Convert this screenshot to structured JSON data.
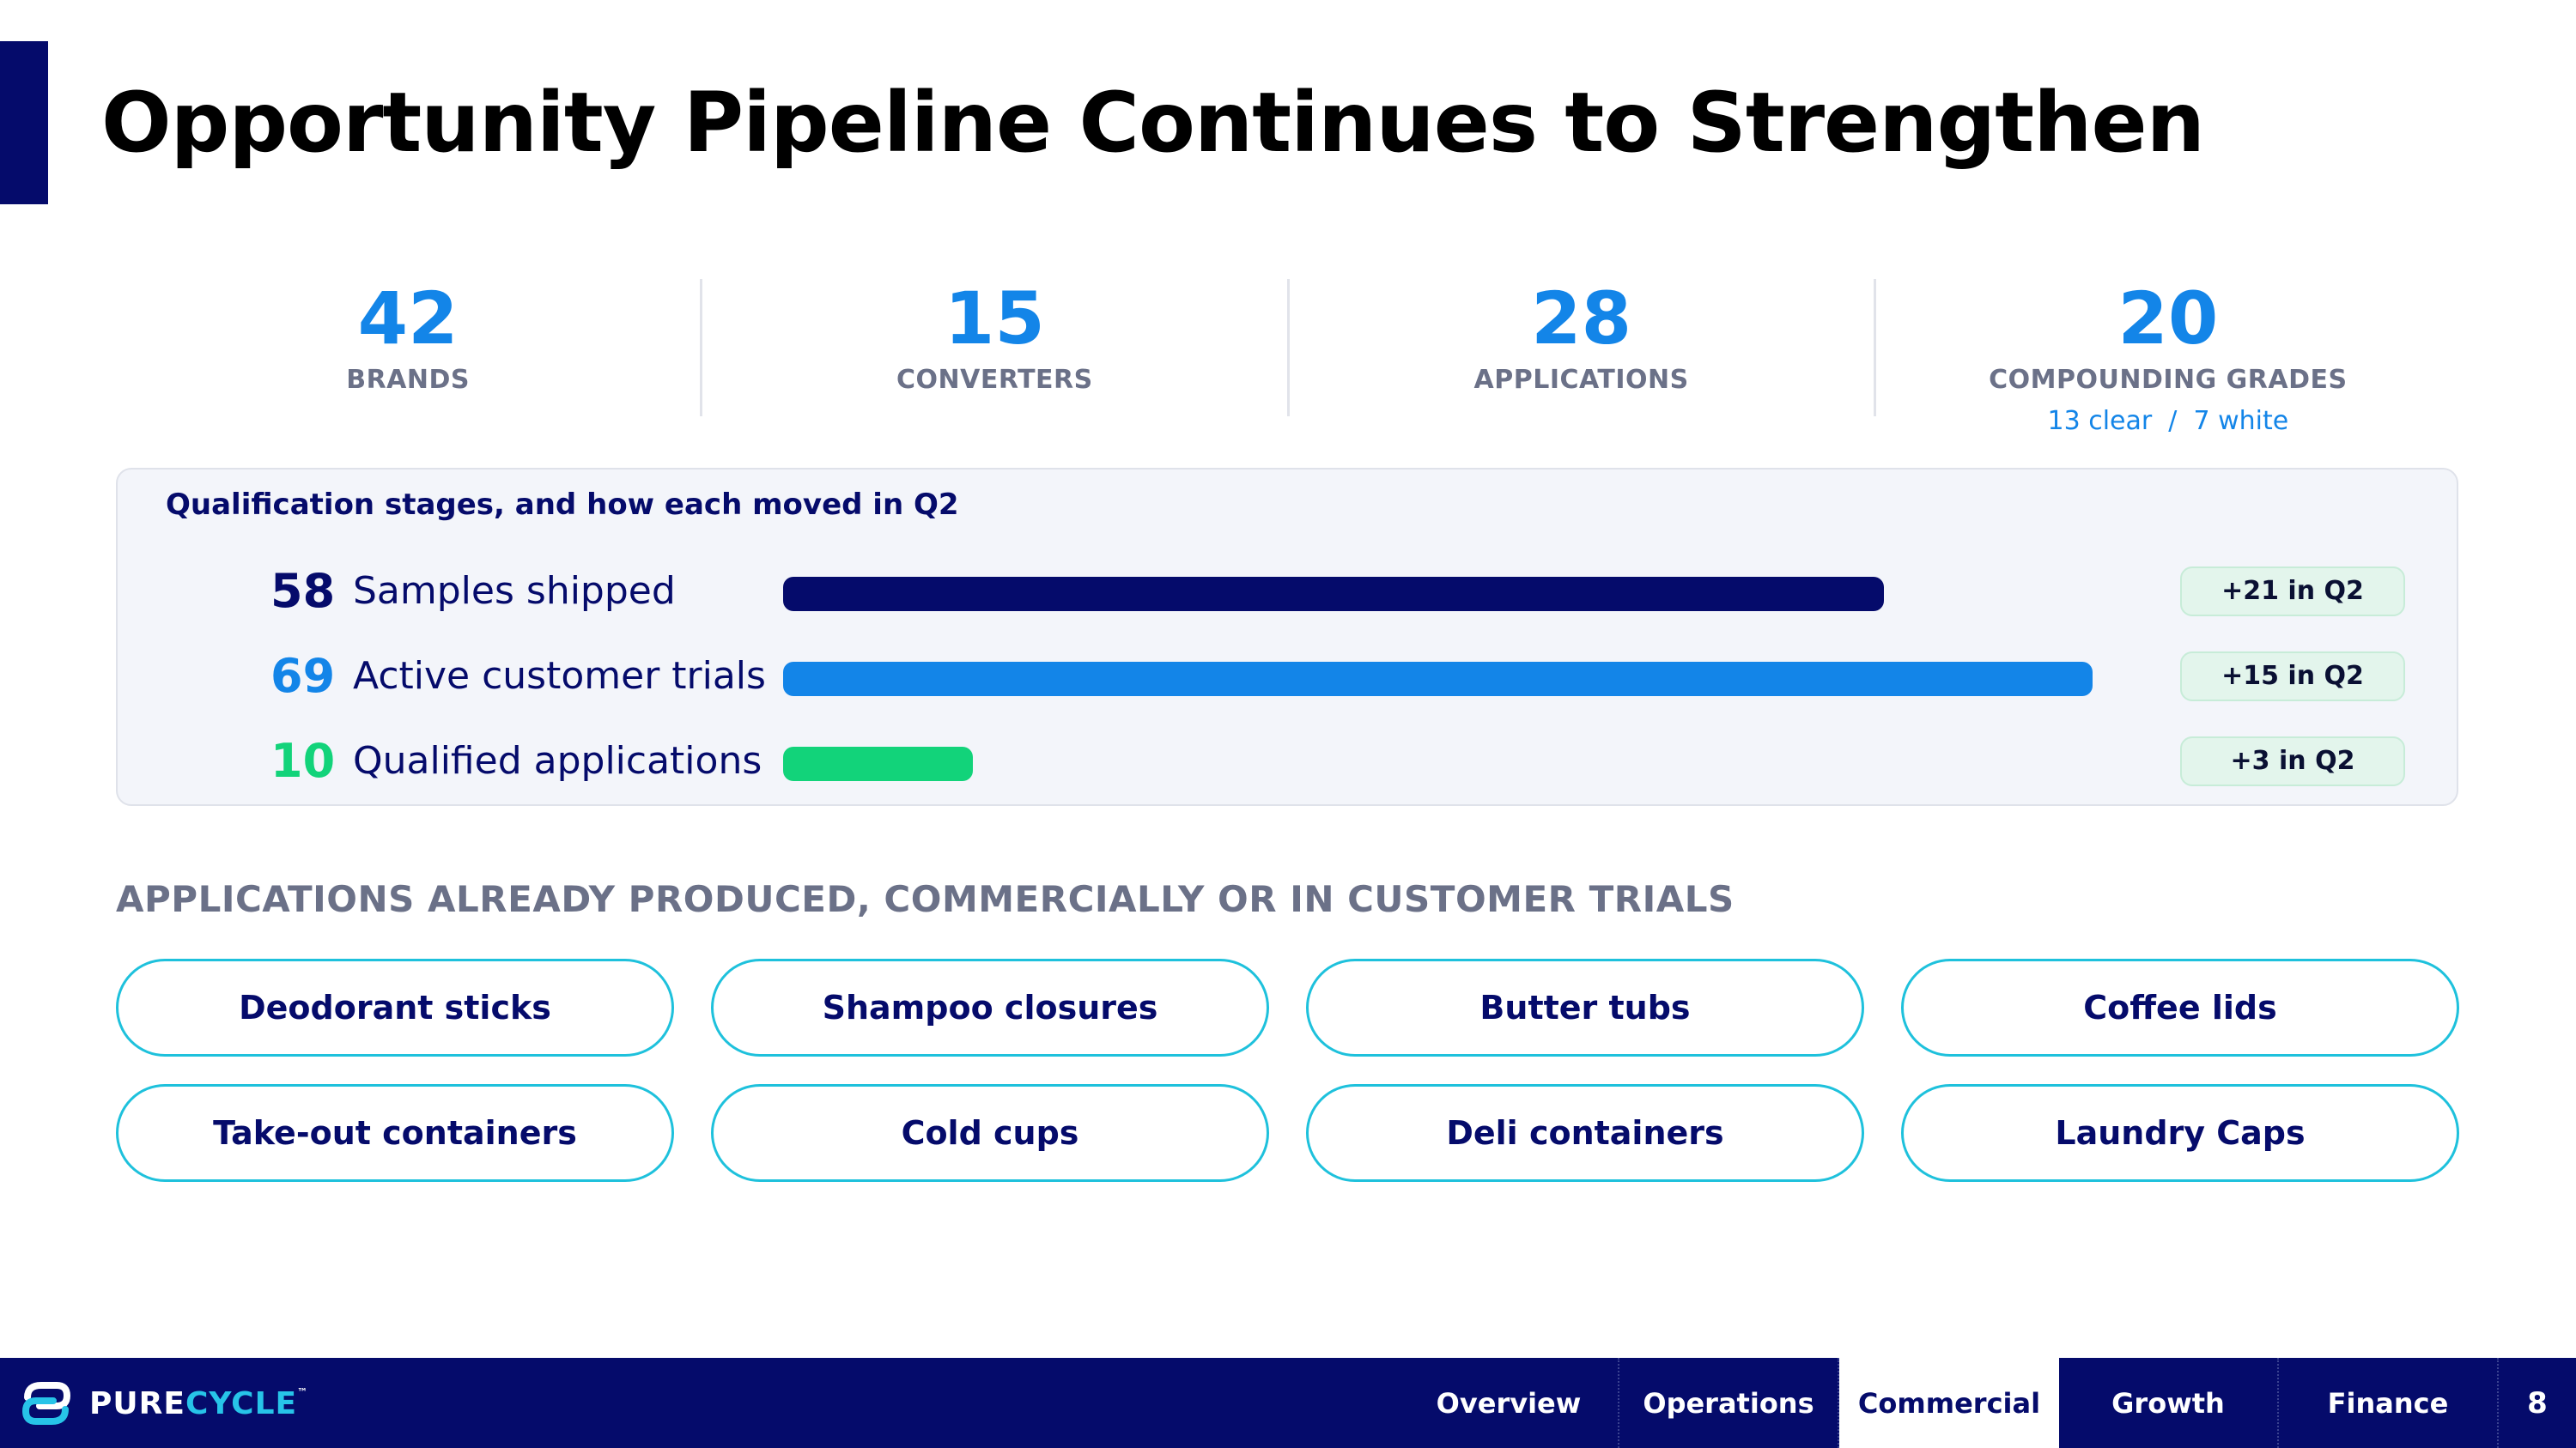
{
  "title": "Opportunity Pipeline Continues to Strengthen",
  "stats": [
    {
      "value": "42",
      "label": "BRANDS"
    },
    {
      "value": "15",
      "label": "CONVERTERS"
    },
    {
      "value": "28",
      "label": "APPLICATIONS"
    },
    {
      "value": "20",
      "label": "COMPOUNDING GRADES",
      "sub": "13 clear  /  7 white"
    }
  ],
  "qualification": {
    "title": "Qualification stages, and how each moved in Q2",
    "stages": [
      {
        "value": 58,
        "label": "Samples shipped",
        "change": "+21 in Q2",
        "color": "#050b6b"
      },
      {
        "value": 69,
        "label": "Active customer trials",
        "change": "+15 in Q2",
        "color": "#1385e8"
      },
      {
        "value": 10,
        "label": "Qualified applications",
        "change": "+3 in Q2",
        "color": "#12d37a"
      }
    ]
  },
  "applications": {
    "heading": "APPLICATIONS ALREADY PRODUCED, COMMERCIALLY OR IN CUSTOMER TRIALS",
    "items": [
      "Deodorant sticks",
      "Shampoo closures",
      "Butter tubs",
      "Coffee lids",
      "Take-out containers",
      "Cold cups",
      "Deli containers",
      "Laundry Caps"
    ]
  },
  "footer": {
    "logo_pure": "PURE",
    "logo_cycle": "CYCLE",
    "logo_tm": "™",
    "nav": [
      {
        "label": "Overview",
        "active": false
      },
      {
        "label": "Operations",
        "active": false
      },
      {
        "label": "Commercial",
        "active": true
      },
      {
        "label": "Growth",
        "active": false
      },
      {
        "label": "Finance",
        "active": false
      }
    ],
    "page_number": "8"
  }
}
